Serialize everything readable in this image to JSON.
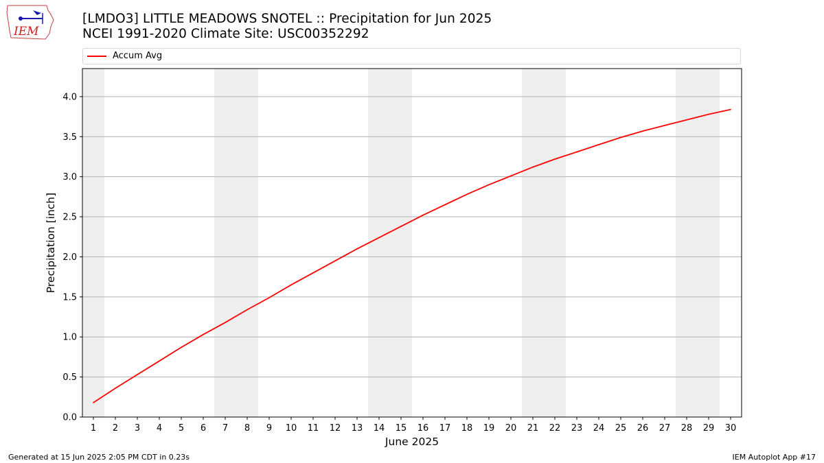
{
  "header": {
    "logo_text": "IEM",
    "title_line1": "[LMDO3] LITTLE MEADOWS SNOTEL :: Precipitation for Jun 2025",
    "title_line2": "NCEI 1991-2020 Climate Site: USC00352292"
  },
  "footer": {
    "left": "Generated at 15 Jun 2025 2:05 PM CDT in 0.23s",
    "right": "IEM Autoplot App #17"
  },
  "colors": {
    "line": "#ff0000",
    "weekend_shade": "#eeeeee",
    "grid": "#b0b0b0"
  },
  "chart_data": {
    "type": "line",
    "title": "[LMDO3] LITTLE MEADOWS SNOTEL :: Precipitation for Jun 2025",
    "xlabel": "June 2025",
    "ylabel": "Precipitation [inch]",
    "xlim": [
      0.5,
      30.5
    ],
    "ylim": [
      0.0,
      4.35
    ],
    "yticks": [
      0.0,
      0.5,
      1.0,
      1.5,
      2.0,
      2.5,
      3.0,
      3.5,
      4.0
    ],
    "ytick_labels": [
      "0.0",
      "0.5",
      "1.0",
      "1.5",
      "2.0",
      "2.5",
      "3.0",
      "3.5",
      "4.0"
    ],
    "xticks": [
      1,
      2,
      3,
      4,
      5,
      6,
      7,
      8,
      9,
      10,
      11,
      12,
      13,
      14,
      15,
      16,
      17,
      18,
      19,
      20,
      21,
      22,
      23,
      24,
      25,
      26,
      27,
      28,
      29,
      30
    ],
    "xtick_labels": [
      "1",
      "2",
      "3",
      "4",
      "5",
      "6",
      "7",
      "8",
      "9",
      "10",
      "11",
      "12",
      "13",
      "14",
      "15",
      "16",
      "17",
      "18",
      "19",
      "20",
      "21",
      "22",
      "23",
      "24",
      "25",
      "26",
      "27",
      "28",
      "29",
      "30"
    ],
    "grid": "horizontal",
    "legend": "top",
    "weekend_bands": [
      [
        0.5,
        1.5
      ],
      [
        6.5,
        8.5
      ],
      [
        13.5,
        15.5
      ],
      [
        20.5,
        22.5
      ],
      [
        27.5,
        29.5
      ]
    ],
    "series": [
      {
        "name": "Accum Avg",
        "x": [
          1,
          2,
          3,
          4,
          5,
          6,
          7,
          8,
          9,
          10,
          11,
          12,
          13,
          14,
          15,
          16,
          17,
          18,
          19,
          20,
          21,
          22,
          23,
          24,
          25,
          26,
          27,
          28,
          29,
          30
        ],
        "values": [
          0.18,
          0.36,
          0.53,
          0.7,
          0.87,
          1.03,
          1.18,
          1.34,
          1.49,
          1.65,
          1.8,
          1.95,
          2.1,
          2.24,
          2.38,
          2.52,
          2.65,
          2.78,
          2.9,
          3.01,
          3.12,
          3.22,
          3.31,
          3.4,
          3.49,
          3.57,
          3.64,
          3.71,
          3.78,
          3.84
        ]
      }
    ]
  }
}
